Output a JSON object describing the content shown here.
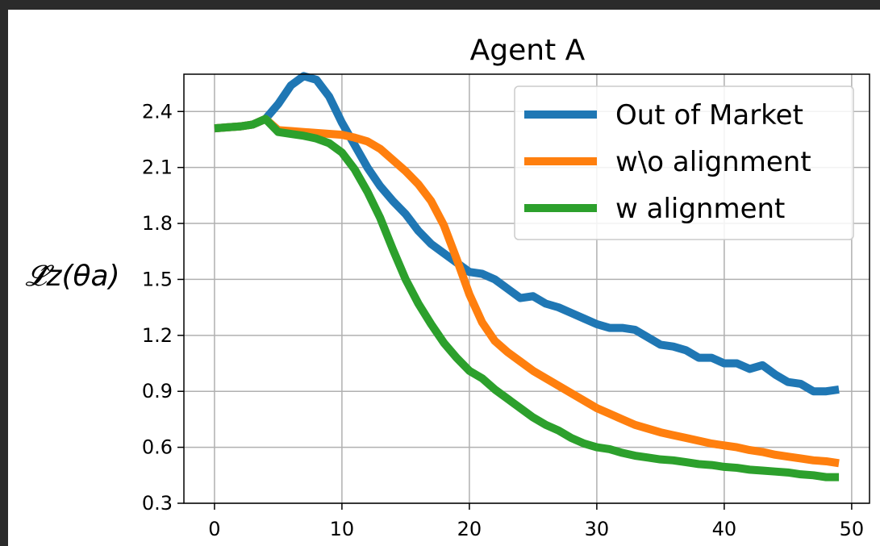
{
  "chart_data": {
    "type": "line",
    "title": "Agent A",
    "xlabel": "",
    "ylabel": "𝓛̂z(θa)",
    "xlim": [
      -2.4,
      51.4
    ],
    "ylim": [
      0.3,
      2.6
    ],
    "xticks": [
      0,
      10,
      20,
      30,
      40,
      50
    ],
    "yticks": [
      0.3,
      0.6,
      0.9,
      1.2,
      1.5,
      1.8,
      2.1,
      2.4
    ],
    "ytick_labels": [
      "0.3",
      "0.6",
      "0.9",
      "1.2",
      "1.5",
      "1.8",
      "2.1",
      "2.4"
    ],
    "grid": true,
    "legend_position": "top-right",
    "x": [
      0,
      1,
      2,
      3,
      4,
      5,
      6,
      7,
      8,
      9,
      10,
      11,
      12,
      13,
      14,
      15,
      16,
      17,
      18,
      19,
      20,
      21,
      22,
      23,
      24,
      25,
      26,
      27,
      28,
      29,
      30,
      31,
      32,
      33,
      34,
      35,
      36,
      37,
      38,
      39,
      40,
      41,
      42,
      43,
      44,
      45,
      46,
      47,
      48,
      49
    ],
    "series": [
      {
        "name": "Out of Market",
        "color": "#1f77b4",
        "values": [
          2.31,
          2.315,
          2.32,
          2.33,
          2.36,
          2.44,
          2.54,
          2.59,
          2.57,
          2.48,
          2.34,
          2.22,
          2.1,
          2.0,
          1.92,
          1.85,
          1.76,
          1.69,
          1.64,
          1.59,
          1.54,
          1.53,
          1.5,
          1.45,
          1.4,
          1.41,
          1.37,
          1.35,
          1.32,
          1.29,
          1.26,
          1.24,
          1.24,
          1.23,
          1.19,
          1.15,
          1.14,
          1.12,
          1.08,
          1.08,
          1.05,
          1.05,
          1.02,
          1.04,
          0.99,
          0.95,
          0.94,
          0.9,
          0.9,
          0.91
        ]
      },
      {
        "name": "w\\o alignment",
        "color": "#ff7f0e",
        "values": [
          2.31,
          2.315,
          2.32,
          2.33,
          2.36,
          2.3,
          2.295,
          2.29,
          2.285,
          2.28,
          2.275,
          2.26,
          2.24,
          2.2,
          2.14,
          2.08,
          2.01,
          1.92,
          1.79,
          1.61,
          1.42,
          1.27,
          1.17,
          1.11,
          1.06,
          1.01,
          0.97,
          0.93,
          0.89,
          0.85,
          0.81,
          0.78,
          0.75,
          0.72,
          0.7,
          0.68,
          0.665,
          0.65,
          0.635,
          0.62,
          0.61,
          0.6,
          0.585,
          0.575,
          0.56,
          0.55,
          0.54,
          0.53,
          0.525,
          0.515
        ]
      },
      {
        "name": "w alignment",
        "color": "#2ca02c",
        "values": [
          2.31,
          2.315,
          2.32,
          2.33,
          2.36,
          2.29,
          2.28,
          2.27,
          2.255,
          2.23,
          2.18,
          2.09,
          1.97,
          1.83,
          1.66,
          1.5,
          1.37,
          1.26,
          1.16,
          1.08,
          1.01,
          0.97,
          0.91,
          0.86,
          0.81,
          0.76,
          0.72,
          0.69,
          0.65,
          0.62,
          0.6,
          0.59,
          0.57,
          0.555,
          0.545,
          0.535,
          0.53,
          0.52,
          0.51,
          0.505,
          0.495,
          0.49,
          0.48,
          0.475,
          0.47,
          0.465,
          0.455,
          0.45,
          0.44,
          0.44
        ]
      }
    ]
  }
}
